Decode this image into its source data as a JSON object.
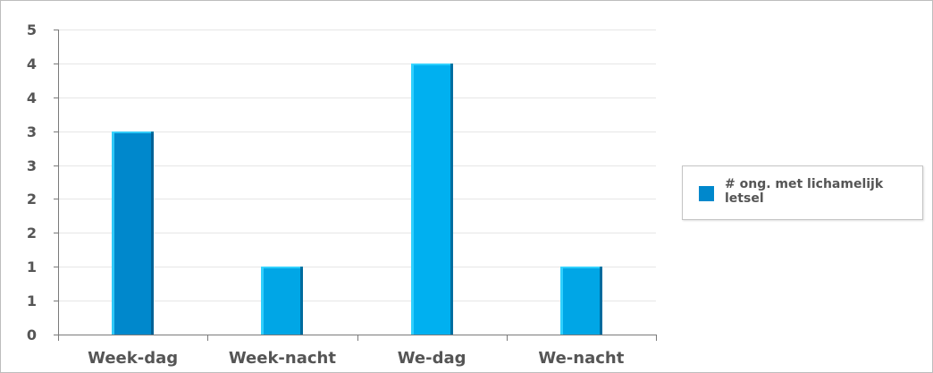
{
  "chart_data": {
    "type": "bar",
    "title": "",
    "xlabel": "",
    "ylabel": "",
    "categories": [
      "Week-dag",
      "Week-nacht",
      "We-dag",
      "We-nacht"
    ],
    "series": [
      {
        "name": "# ong. met lichamelijk letsel",
        "values": [
          3,
          1,
          4,
          1
        ]
      }
    ],
    "ylim": [
      0,
      4.5
    ],
    "y_tick_values": [
      0,
      0.5,
      1,
      1.5,
      2,
      2.5,
      3,
      3.5,
      4,
      4.5
    ],
    "y_tick_labels": [
      "0",
      "1",
      "1",
      "2",
      "2",
      "3",
      "3",
      "4",
      "4",
      "5"
    ],
    "grid": true,
    "legend_position": "right"
  },
  "colors": {
    "bars": [
      "#0088cc",
      "#00a6e6",
      "#00b0f0",
      "#00a6e6"
    ],
    "bar_highlight": "#38d6ff",
    "bar_shadow": "#00527f",
    "legend_swatch": "#0088cc",
    "grid": "#e6e6e6",
    "axis": "#7a7a7a"
  }
}
